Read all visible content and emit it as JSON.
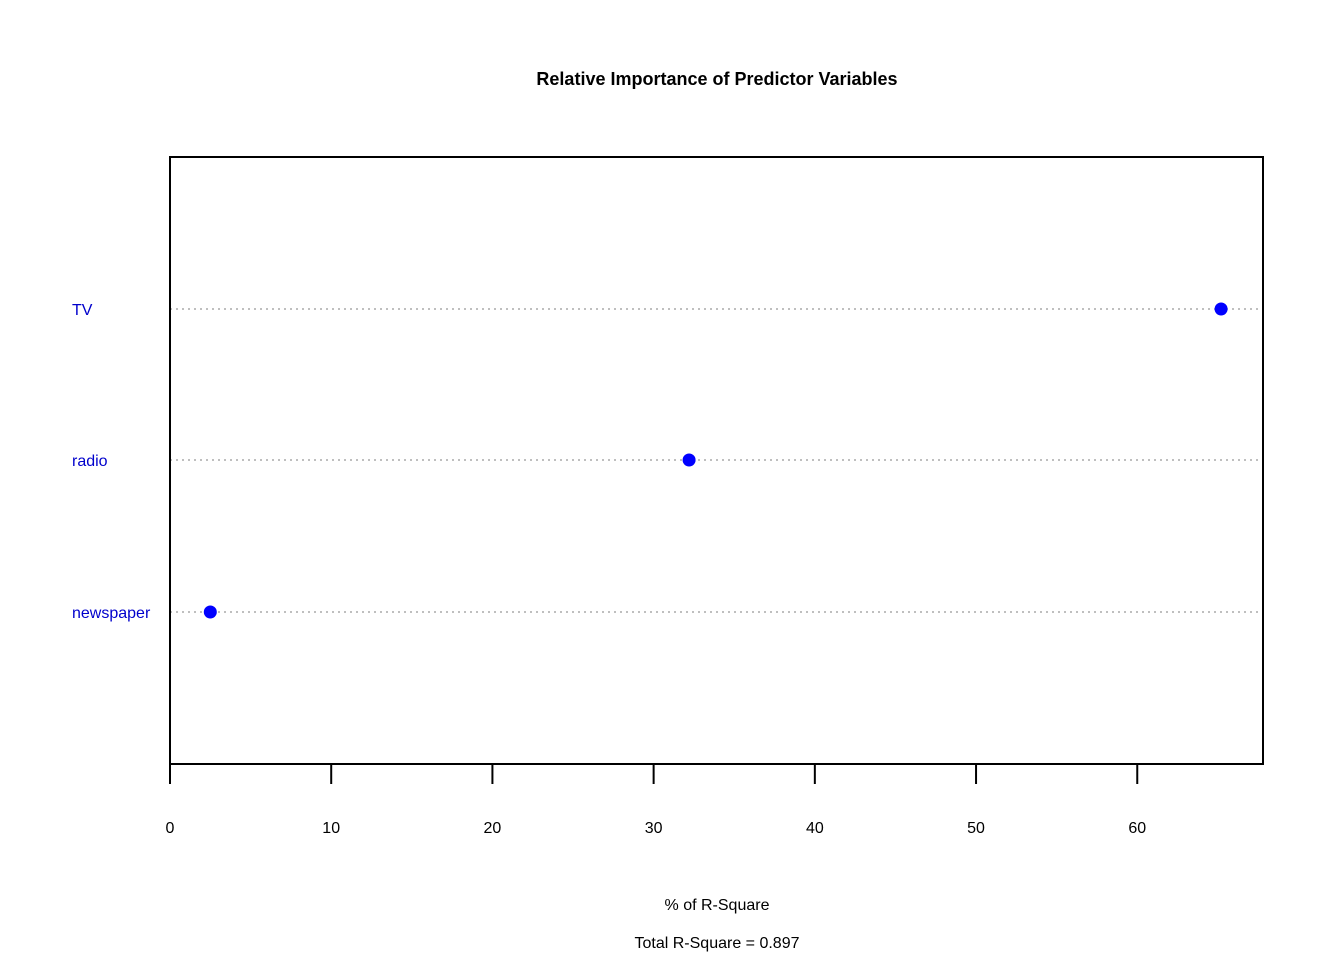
{
  "chart_data": {
    "type": "scatter",
    "title": "Relative Importance of Predictor Variables",
    "xlabel": "% of R-Square",
    "ylabel": "",
    "categories": [
      "TV",
      "radio",
      "newspaper"
    ],
    "values": [
      65.2,
      32.2,
      2.5
    ],
    "xlim": [
      0,
      67.8
    ],
    "xticks": [
      0,
      10,
      20,
      30,
      40,
      50,
      60
    ],
    "point_color": "#0000ff",
    "label_color": "#0000cc",
    "guide_color": "#aaaaaa",
    "gridlines": "dotted-horizontal",
    "footnote": "Total R-Square = 0.897"
  }
}
